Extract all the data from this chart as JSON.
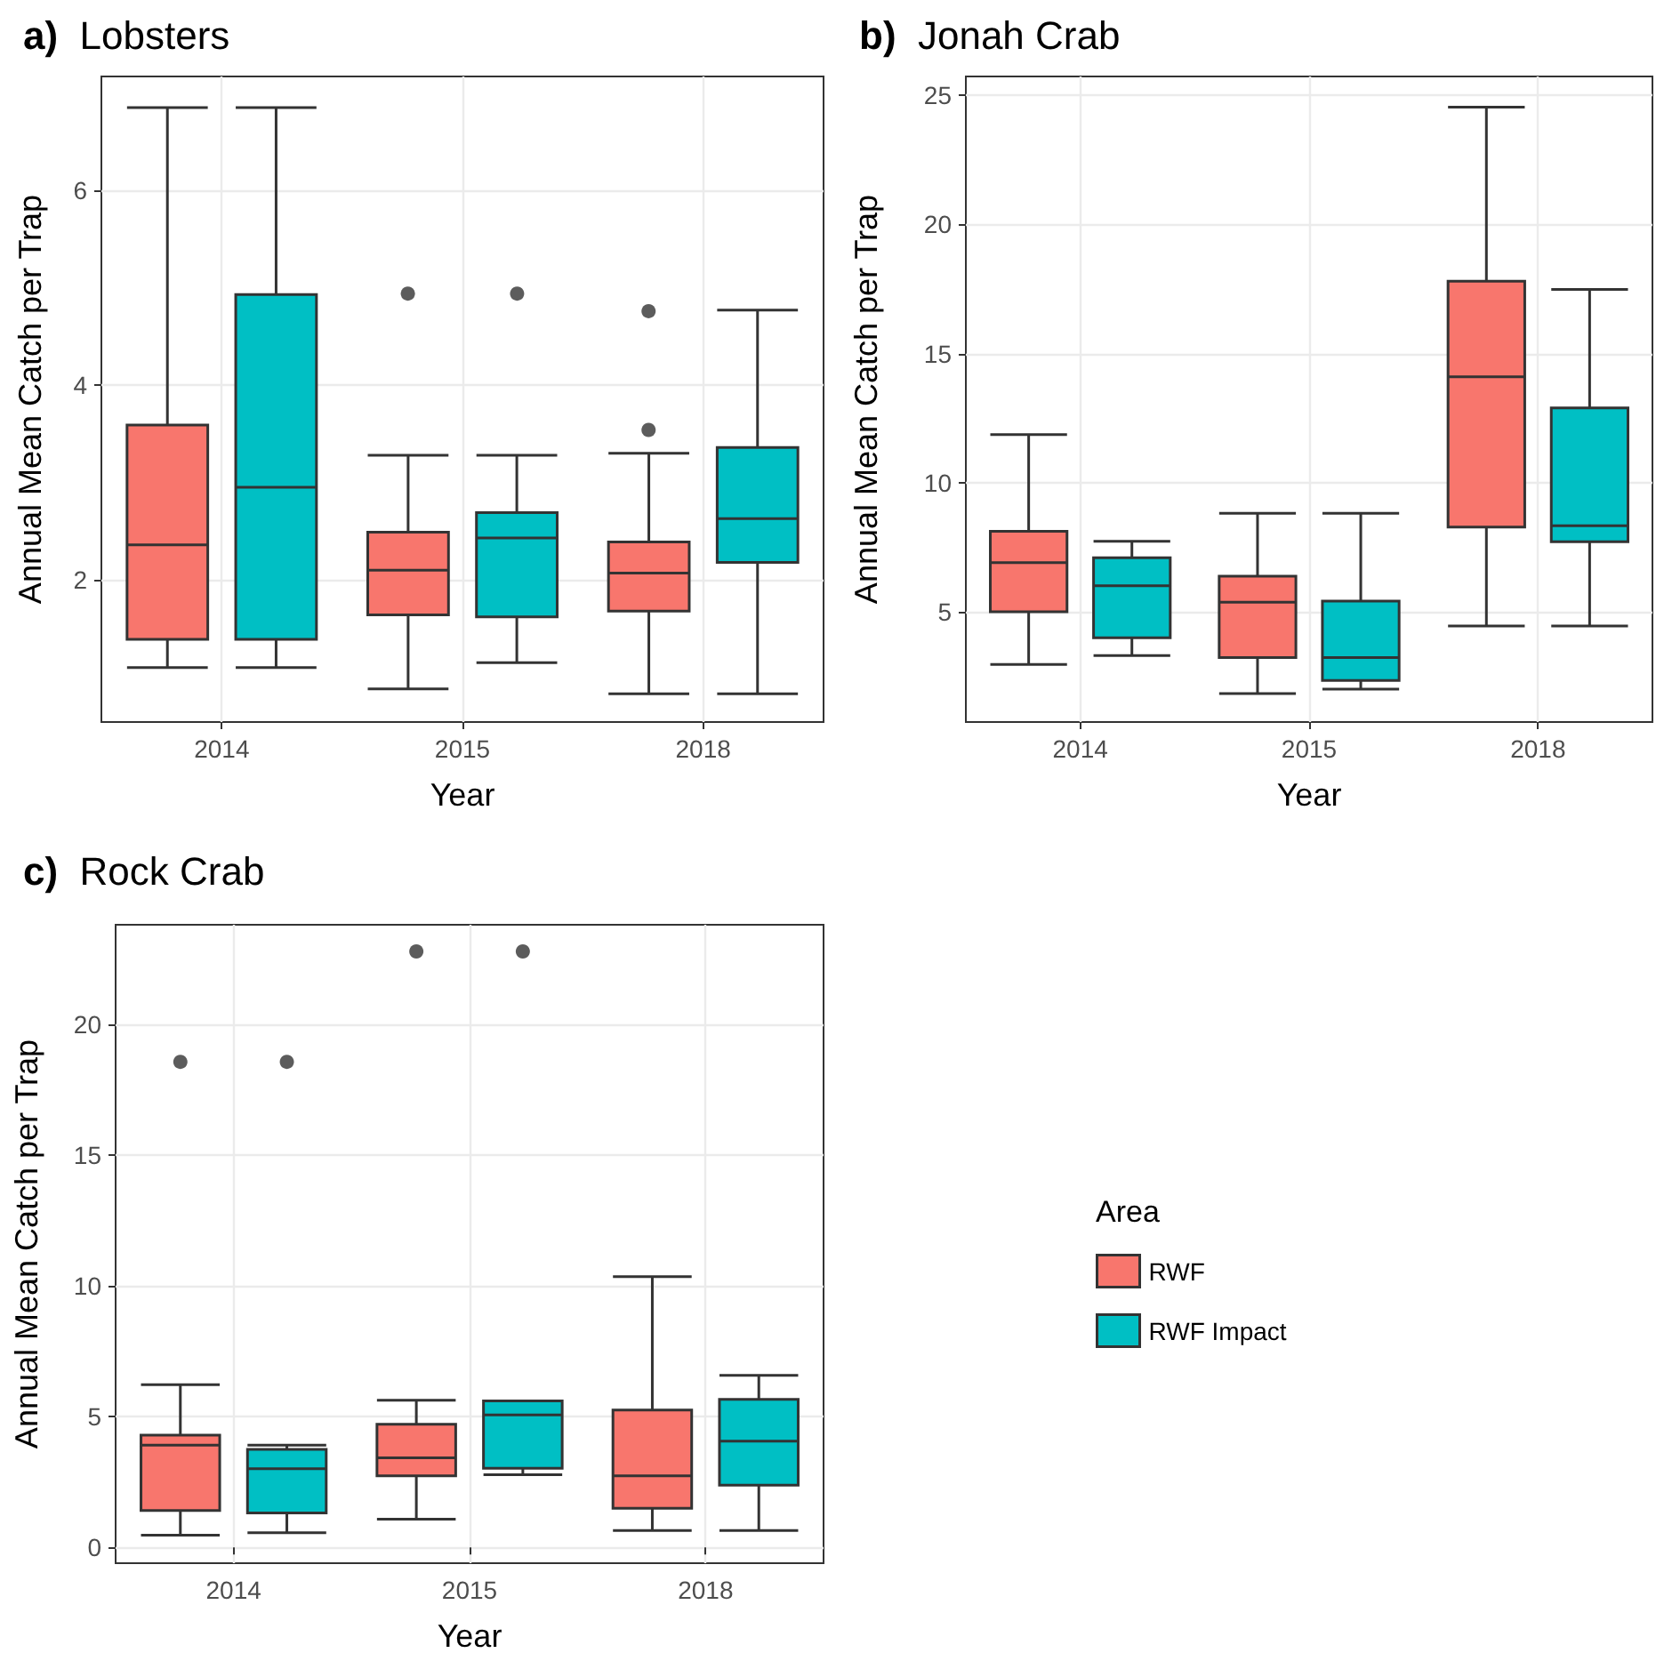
{
  "chart_data": [
    {
      "type": "box",
      "title": "a) Lobsters",
      "xlabel": "Year",
      "ylabel": "Annual Mean Catch per Trap",
      "categories": [
        "2014",
        "2015",
        "2018"
      ],
      "ylim": [
        0.54,
        7.17
      ],
      "yticks": [
        2,
        4,
        6
      ],
      "grid": true,
      "series": [
        {
          "color": "#f8766d",
          "boxes": [
            {
              "low": 1.1,
              "q1": 1.39,
              "median": 2.36,
              "q3": 3.59,
              "high": 6.85
            },
            {
              "low": 0.88,
              "q1": 1.64,
              "median": 2.1,
              "q3": 2.49,
              "high": 3.28,
              "outliers": [
                4.94
              ]
            },
            {
              "low": 0.83,
              "q1": 1.68,
              "median": 2.07,
              "q3": 2.39,
              "high": 3.3,
              "outliers": [
                4.76,
                3.54
              ]
            }
          ]
        },
        {
          "color": "#00bfc4",
          "boxes": [
            {
              "low": 1.1,
              "q1": 1.39,
              "median": 2.95,
              "q3": 4.93,
              "high": 6.85
            },
            {
              "low": 1.15,
              "q1": 1.62,
              "median": 2.43,
              "q3": 2.69,
              "high": 3.28,
              "outliers": [
                4.94
              ]
            },
            {
              "low": 0.83,
              "q1": 2.18,
              "median": 2.63,
              "q3": 3.36,
              "high": 4.77
            }
          ]
        }
      ]
    },
    {
      "type": "box",
      "title": "b) Jonah Crab",
      "xlabel": "Year",
      "ylabel": "Annual Mean Catch per Trap",
      "categories": [
        "2014",
        "2015",
        "2018"
      ],
      "ylim": [
        0.73,
        25.73
      ],
      "yticks": [
        5,
        10,
        15,
        20,
        25
      ],
      "grid": true,
      "series": [
        {
          "color": "#f8766d",
          "boxes": [
            {
              "low": 2.96,
              "q1": 5.0,
              "median": 6.9,
              "q3": 8.12,
              "high": 11.86
            },
            {
              "low": 1.83,
              "q1": 3.23,
              "median": 5.37,
              "q3": 6.38,
              "high": 8.81
            },
            {
              "low": 4.45,
              "q1": 8.28,
              "median": 14.1,
              "q3": 17.8,
              "high": 24.54
            }
          ]
        },
        {
          "color": "#00bfc4",
          "boxes": [
            {
              "low": 3.3,
              "q1": 3.99,
              "median": 6.01,
              "q3": 7.09,
              "high": 7.73
            },
            {
              "low": 2.0,
              "q1": 2.34,
              "median": 3.23,
              "q3": 5.41,
              "high": 8.81
            },
            {
              "low": 4.45,
              "q1": 7.71,
              "median": 8.33,
              "q3": 12.89,
              "high": 17.48
            }
          ]
        }
      ]
    },
    {
      "type": "box",
      "title": "c) Rock Crab",
      "xlabel": "Year",
      "ylabel": "Annual Mean Catch per Trap",
      "categories": [
        "2014",
        "2015",
        "2018"
      ],
      "ylim": [
        -0.6,
        23.8
      ],
      "yticks": [
        0,
        5,
        10,
        15,
        20
      ],
      "grid": true,
      "legend": "right",
      "legend_title": "Area",
      "series": [
        {
          "name": "RWF",
          "color": "#f8766d",
          "boxes": [
            {
              "low": 0.47,
              "q1": 1.41,
              "median": 3.91,
              "q3": 4.29,
              "high": 6.22,
              "outliers": [
                18.56
              ]
            },
            {
              "low": 1.08,
              "q1": 2.74,
              "median": 3.43,
              "q3": 4.71,
              "high": 5.63,
              "outliers": [
                22.78
              ]
            },
            {
              "low": 0.65,
              "q1": 1.5,
              "median": 2.74,
              "q3": 5.25,
              "high": 10.35
            }
          ]
        },
        {
          "name": "RWF Impact",
          "color": "#00bfc4",
          "boxes": [
            {
              "low": 0.56,
              "q1": 1.32,
              "median": 3.01,
              "q3": 3.75,
              "high": 3.91,
              "outliers": [
                18.56
              ]
            },
            {
              "low": 2.78,
              "q1": 3.03,
              "median": 5.07,
              "q3": 5.6,
              "high": 5.6,
              "outliers": [
                22.78
              ]
            },
            {
              "low": 0.65,
              "q1": 2.38,
              "median": 4.06,
              "q3": 5.66,
              "high": 6.58
            }
          ]
        }
      ]
    }
  ]
}
